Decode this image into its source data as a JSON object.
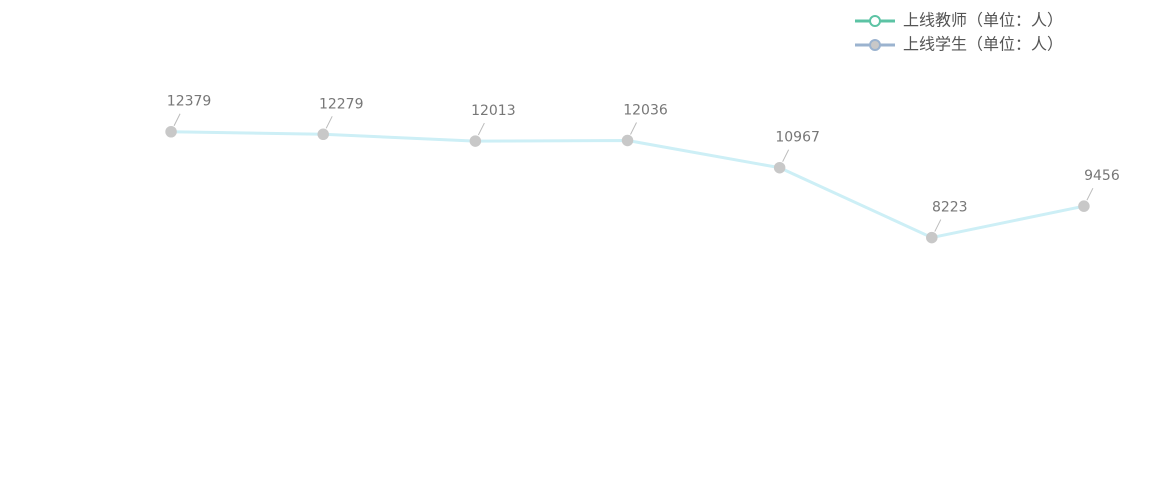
{
  "chart_data": {
    "type": "line",
    "categories": [
      null,
      null,
      null,
      null,
      null,
      null,
      null
    ],
    "series": [
      {
        "name": "上线教师（单位：人）",
        "color": "#5cc3a4",
        "marker": "hollow",
        "values": [
          null,
          null,
          null,
          null,
          null,
          null,
          null
        ]
      },
      {
        "name": "上线学生（单位：人）",
        "color": "#9bb3cf",
        "line_color": "#cdeff6",
        "point_color": "#c8c8c8",
        "marker": "filled",
        "values": [
          12379,
          12279,
          12013,
          12036,
          10967,
          8223,
          9456
        ]
      }
    ],
    "ylim": [
      0,
      15000
    ],
    "legend": "top-right"
  }
}
